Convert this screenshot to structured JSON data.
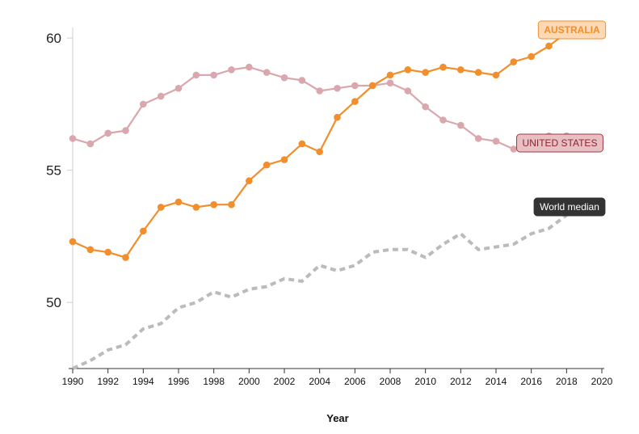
{
  "chart_data": {
    "type": "line",
    "xlabel": "Year",
    "ylabel": "",
    "title": "",
    "xlim": [
      1990,
      2020
    ],
    "ylim": [
      47.5,
      60.4
    ],
    "xticks": [
      "1990",
      "1992",
      "1994",
      "1996",
      "1998",
      "2000",
      "2002",
      "2004",
      "2006",
      "2008",
      "2010",
      "2012",
      "2014",
      "2016",
      "2018",
      "2020"
    ],
    "yticks": [
      "50",
      "55",
      "60"
    ],
    "x": [
      1990,
      1991,
      1992,
      1993,
      1994,
      1995,
      1996,
      1997,
      1998,
      1999,
      2000,
      2001,
      2002,
      2003,
      2004,
      2005,
      2006,
      2007,
      2008,
      2009,
      2010,
      2011,
      2012,
      2013,
      2014,
      2015,
      2016,
      2017,
      2018
    ],
    "series": [
      {
        "name": "AUSTRALIA",
        "color": "#f28e2b",
        "style": "solid-markers",
        "values": [
          52.3,
          52.0,
          51.9,
          51.7,
          52.7,
          53.6,
          53.8,
          53.6,
          53.7,
          53.7,
          54.6,
          55.2,
          55.4,
          56.0,
          55.7,
          57.0,
          57.6,
          58.2,
          58.6,
          58.8,
          58.7,
          58.9,
          58.8,
          58.7,
          58.6,
          59.1,
          59.3,
          59.7,
          60.2
        ]
      },
      {
        "name": "UNITED STATES",
        "color": "#d9a7ad",
        "style": "solid-markers",
        "values": [
          56.2,
          56.0,
          56.4,
          56.5,
          57.5,
          57.8,
          58.1,
          58.6,
          58.6,
          58.8,
          58.9,
          58.7,
          58.5,
          58.4,
          58.0,
          58.1,
          58.2,
          58.2,
          58.3,
          58.0,
          57.4,
          56.9,
          56.7,
          56.2,
          56.1,
          55.8,
          55.9,
          56.3,
          56.3
        ]
      },
      {
        "name": "World median",
        "color": "#bbbbbb",
        "style": "dashed",
        "values": [
          47.5,
          47.8,
          48.2,
          48.4,
          49.0,
          49.2,
          49.8,
          50.0,
          50.4,
          50.2,
          50.5,
          50.6,
          50.9,
          50.8,
          51.4,
          51.2,
          51.4,
          51.9,
          52.0,
          52.0,
          51.7,
          52.2,
          52.6,
          52.0,
          52.1,
          52.2,
          52.6,
          52.8,
          53.3
        ]
      }
    ],
    "grid": false,
    "legend": "inline labels at right end of each series"
  }
}
